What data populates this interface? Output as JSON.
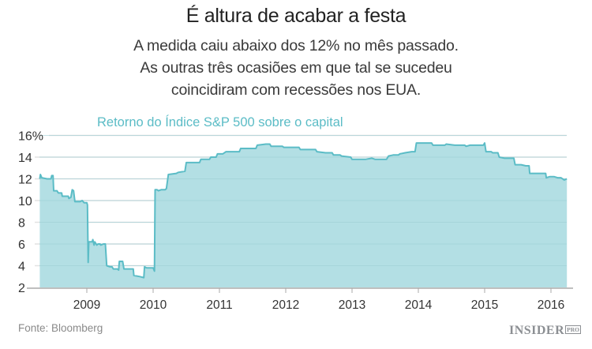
{
  "header": {
    "title": "É altura de acabar a festa",
    "subtitle_lines": [
      "A medida caiu abaixo dos 12% no mês passado.",
      "As outras três ocasiões em que tal se sucedeu",
      "coincidiram com recessões nos EUA."
    ]
  },
  "footer": {
    "source": "Fonte: Bloomberg",
    "logo": "INSIDER",
    "logo_badge": "PRO"
  },
  "colors": {
    "fill": "#b3dfe4",
    "line": "#5bbcc6",
    "grid": "#e2e2e2",
    "axis": "#aaaaaa",
    "label": "#5bbcc6"
  },
  "chart_data": {
    "type": "area",
    "title": "É altura de acabar a festa",
    "series_label": "Retorno do Índice S&P 500 sobre o capital",
    "xlabel": "",
    "ylabel": "",
    "y_ticks": [
      "2",
      "4",
      "6",
      "8",
      "10",
      "12",
      "14",
      "16%"
    ],
    "y_tick_values": [
      2,
      4,
      6,
      8,
      10,
      12,
      14,
      16
    ],
    "ylim": [
      2,
      16
    ],
    "x_ticks": [
      "2009",
      "2010",
      "2011",
      "2012",
      "2013",
      "2014",
      "2015",
      "2016"
    ],
    "x_tick_values": [
      2009,
      2010,
      2011,
      2012,
      2013,
      2014,
      2015,
      2016
    ],
    "xlim": [
      2008.29,
      2016.24
    ],
    "grid": true,
    "legend": "none",
    "series": [
      {
        "name": "Retorno do Índice S&P 500 sobre o capital",
        "points": [
          [
            2008.29,
            12.0
          ],
          [
            2008.3,
            12.4
          ],
          [
            2008.32,
            12.1
          ],
          [
            2008.4,
            12.0
          ],
          [
            2008.46,
            12.0
          ],
          [
            2008.47,
            12.3
          ],
          [
            2008.49,
            12.3
          ],
          [
            2008.5,
            10.9
          ],
          [
            2008.55,
            10.9
          ],
          [
            2008.57,
            10.7
          ],
          [
            2008.62,
            10.7
          ],
          [
            2008.63,
            10.4
          ],
          [
            2008.72,
            10.4
          ],
          [
            2008.73,
            10.2
          ],
          [
            2008.76,
            10.3
          ],
          [
            2008.78,
            11.0
          ],
          [
            2008.8,
            10.9
          ],
          [
            2008.82,
            9.9
          ],
          [
            2008.9,
            9.9
          ],
          [
            2008.93,
            10.0
          ],
          [
            2008.96,
            9.8
          ],
          [
            2009.0,
            9.8
          ],
          [
            2009.01,
            9.6
          ],
          [
            2009.02,
            4.3
          ],
          [
            2009.03,
            6.2
          ],
          [
            2009.08,
            6.2
          ],
          [
            2009.09,
            6.4
          ],
          [
            2009.11,
            5.9
          ],
          [
            2009.12,
            6.2
          ],
          [
            2009.15,
            5.9
          ],
          [
            2009.17,
            6.0
          ],
          [
            2009.2,
            6.0
          ],
          [
            2009.21,
            5.9
          ],
          [
            2009.25,
            6.0
          ],
          [
            2009.28,
            6.0
          ],
          [
            2009.3,
            4.0
          ],
          [
            2009.35,
            3.9
          ],
          [
            2009.38,
            3.9
          ],
          [
            2009.4,
            3.7
          ],
          [
            2009.46,
            3.7
          ],
          [
            2009.48,
            3.6
          ],
          [
            2009.49,
            4.4
          ],
          [
            2009.54,
            4.4
          ],
          [
            2009.56,
            3.7
          ],
          [
            2009.7,
            3.7
          ],
          [
            2009.71,
            3.1
          ],
          [
            2009.8,
            3.0
          ],
          [
            2009.86,
            2.9
          ],
          [
            2009.87,
            3.9
          ],
          [
            2009.9,
            3.8
          ],
          [
            2010.0,
            3.8
          ],
          [
            2010.02,
            3.5
          ],
          [
            2010.03,
            11.0
          ],
          [
            2010.06,
            11.0
          ],
          [
            2010.08,
            10.9
          ],
          [
            2010.12,
            11.0
          ],
          [
            2010.18,
            11.0
          ],
          [
            2010.2,
            11.1
          ],
          [
            2010.23,
            12.4
          ],
          [
            2010.35,
            12.5
          ],
          [
            2010.38,
            12.6
          ],
          [
            2010.48,
            12.7
          ],
          [
            2010.5,
            13.5
          ],
          [
            2010.7,
            13.5
          ],
          [
            2010.72,
            13.8
          ],
          [
            2010.85,
            13.8
          ],
          [
            2010.87,
            14.0
          ],
          [
            2010.95,
            14.0
          ],
          [
            2010.97,
            14.3
          ],
          [
            2011.05,
            14.3
          ],
          [
            2011.1,
            14.5
          ],
          [
            2011.3,
            14.5
          ],
          [
            2011.32,
            14.8
          ],
          [
            2011.55,
            14.8
          ],
          [
            2011.57,
            15.1
          ],
          [
            2011.7,
            15.2
          ],
          [
            2011.76,
            15.2
          ],
          [
            2011.78,
            15.0
          ],
          [
            2011.95,
            15.0
          ],
          [
            2011.97,
            14.9
          ],
          [
            2012.2,
            14.9
          ],
          [
            2012.22,
            14.7
          ],
          [
            2012.45,
            14.7
          ],
          [
            2012.47,
            14.5
          ],
          [
            2012.6,
            14.4
          ],
          [
            2012.7,
            14.4
          ],
          [
            2012.72,
            14.2
          ],
          [
            2012.82,
            14.2
          ],
          [
            2012.84,
            14.1
          ],
          [
            2012.98,
            14.0
          ],
          [
            2013.0,
            13.8
          ],
          [
            2013.2,
            13.8
          ],
          [
            2013.3,
            13.9
          ],
          [
            2013.35,
            13.8
          ],
          [
            2013.52,
            13.8
          ],
          [
            2013.55,
            14.1
          ],
          [
            2013.62,
            14.2
          ],
          [
            2013.7,
            14.2
          ],
          [
            2013.72,
            14.3
          ],
          [
            2013.8,
            14.4
          ],
          [
            2013.9,
            14.5
          ],
          [
            2013.95,
            14.5
          ],
          [
            2013.97,
            15.3
          ],
          [
            2014.2,
            15.3
          ],
          [
            2014.22,
            15.1
          ],
          [
            2014.4,
            15.1
          ],
          [
            2014.42,
            15.2
          ],
          [
            2014.55,
            15.1
          ],
          [
            2014.7,
            15.1
          ],
          [
            2014.72,
            15.0
          ],
          [
            2014.78,
            15.1
          ],
          [
            2014.98,
            15.1
          ],
          [
            2015.0,
            15.3
          ],
          [
            2015.02,
            14.5
          ],
          [
            2015.1,
            14.5
          ],
          [
            2015.12,
            14.4
          ],
          [
            2015.2,
            14.4
          ],
          [
            2015.22,
            14.0
          ],
          [
            2015.3,
            13.9
          ],
          [
            2015.44,
            13.9
          ],
          [
            2015.46,
            13.3
          ],
          [
            2015.55,
            13.3
          ],
          [
            2015.62,
            13.2
          ],
          [
            2015.67,
            13.2
          ],
          [
            2015.68,
            12.5
          ],
          [
            2015.84,
            12.5
          ],
          [
            2015.86,
            12.5
          ],
          [
            2015.92,
            12.5
          ],
          [
            2015.93,
            12.1
          ],
          [
            2015.98,
            12.2
          ],
          [
            2016.05,
            12.2
          ],
          [
            2016.1,
            12.1
          ],
          [
            2016.15,
            12.1
          ],
          [
            2016.2,
            11.9
          ],
          [
            2016.24,
            12.0
          ]
        ]
      }
    ]
  }
}
